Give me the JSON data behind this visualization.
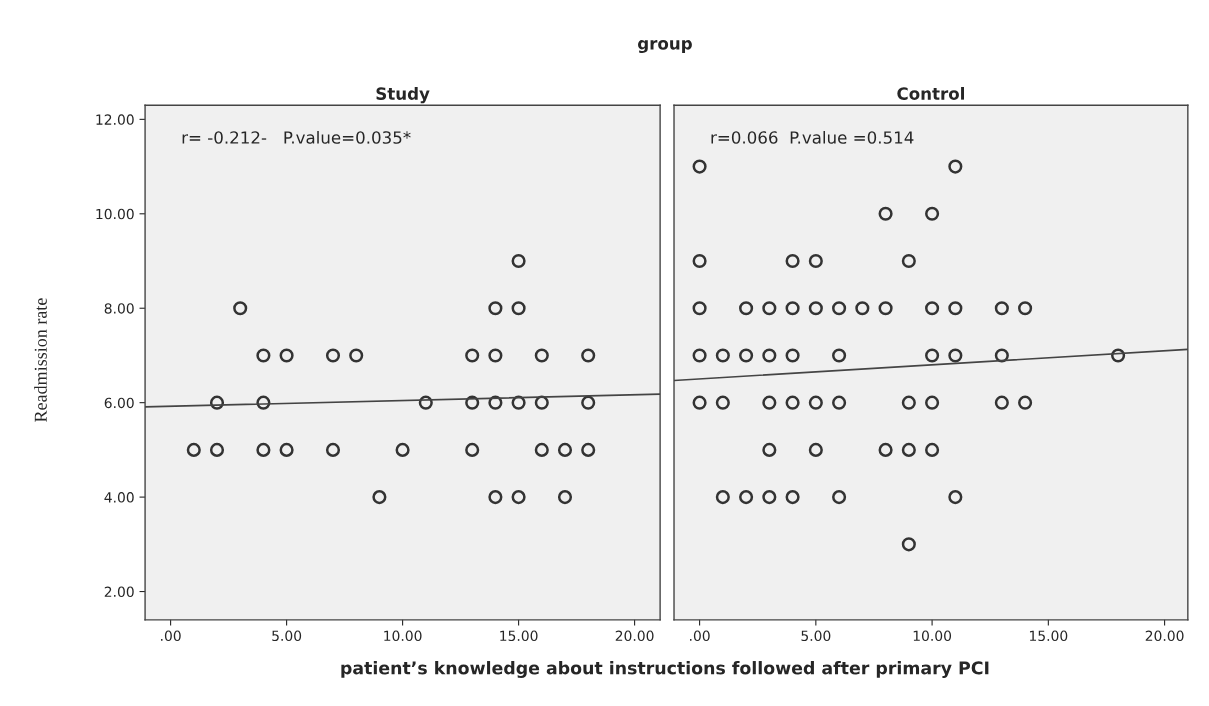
{
  "chart_data": [
    {
      "type": "scatter",
      "title": "Study",
      "xlabel": "patient’s knowledge about instructions followed after primary PCI",
      "ylabel": "Readmission rate",
      "annotations": [
        "group",
        "r= -0.212-   P.value=0.035*"
      ],
      "series": [
        {
          "color": "#333333",
          "marker": "circle",
          "x": [
            15,
            3,
            14,
            15,
            4,
            5,
            7,
            8,
            13,
            14,
            16,
            18,
            2,
            4,
            11,
            13,
            14,
            15,
            16,
            18,
            1,
            2,
            4,
            5,
            7,
            10,
            13,
            16,
            17,
            18,
            9,
            14,
            15,
            17
          ],
          "values": [
            9,
            8,
            8,
            8,
            7,
            7,
            7,
            7,
            7,
            7,
            7,
            7,
            6,
            6,
            6,
            6,
            6,
            6,
            6,
            6,
            5,
            5,
            5,
            5,
            5,
            5,
            5,
            5,
            5,
            5,
            4,
            4,
            4,
            4
          ]
        },
        {
          "type": "line",
          "color": "#444444",
          "marker": "none",
          "x": [
            -1.1,
            21.1
          ],
          "values": [
            5.91,
            6.18
          ]
        }
      ],
      "xlim": [
        -1.1,
        21.1
      ],
      "ylim": [
        1.4,
        12.3
      ],
      "xticks": [
        {
          "value": 0,
          "label": ".00"
        },
        {
          "value": 5,
          "label": "5.00"
        },
        {
          "value": 10,
          "label": "10.00"
        },
        {
          "value": 15,
          "label": "15.00"
        },
        {
          "value": 20,
          "label": "20.00"
        }
      ],
      "yticks": [
        {
          "value": 2,
          "label": "2.00"
        },
        {
          "value": 4,
          "label": "4.00"
        },
        {
          "value": 6,
          "label": "6.00"
        },
        {
          "value": 8,
          "label": "8.00"
        },
        {
          "value": 10,
          "label": "10.00"
        },
        {
          "value": 12,
          "label": "12.00"
        }
      ],
      "grid": false
    },
    {
      "type": "scatter",
      "title": "Control",
      "annotations": [
        "r=0.066  P.value =0.514"
      ],
      "series": [
        {
          "color": "#333333",
          "marker": "circle",
          "x": [
            0,
            11,
            8,
            10,
            0,
            4,
            5,
            9,
            0,
            2,
            3,
            4,
            5,
            6,
            7,
            8,
            10,
            11,
            13,
            14,
            0,
            1,
            2,
            3,
            4,
            6,
            10,
            11,
            13,
            18,
            0,
            1,
            3,
            4,
            5,
            6,
            9,
            10,
            13,
            14,
            3,
            5,
            8,
            9,
            10,
            1,
            2,
            3,
            4,
            6,
            11,
            9
          ],
          "values": [
            11,
            11,
            10,
            10,
            9,
            9,
            9,
            9,
            8,
            8,
            8,
            8,
            8,
            8,
            8,
            8,
            8,
            8,
            8,
            8,
            7,
            7,
            7,
            7,
            7,
            7,
            7,
            7,
            7,
            7,
            6,
            6,
            6,
            6,
            6,
            6,
            6,
            6,
            6,
            6,
            5,
            5,
            5,
            5,
            5,
            4,
            4,
            4,
            4,
            4,
            4,
            3
          ]
        },
        {
          "type": "line",
          "color": "#444444",
          "marker": "none",
          "x": [
            -1.1,
            21.0
          ],
          "values": [
            6.47,
            7.13
          ]
        }
      ],
      "xlim": [
        -1.1,
        21.0
      ],
      "ylim": [
        1.4,
        12.3
      ],
      "xticks": [
        {
          "value": 0,
          "label": ".00"
        },
        {
          "value": 5,
          "label": "5.00"
        },
        {
          "value": 10,
          "label": "10.00"
        },
        {
          "value": 15,
          "label": "15.00"
        },
        {
          "value": 20,
          "label": "20.00"
        }
      ],
      "tick_labels": "x",
      "grid": false
    }
  ]
}
